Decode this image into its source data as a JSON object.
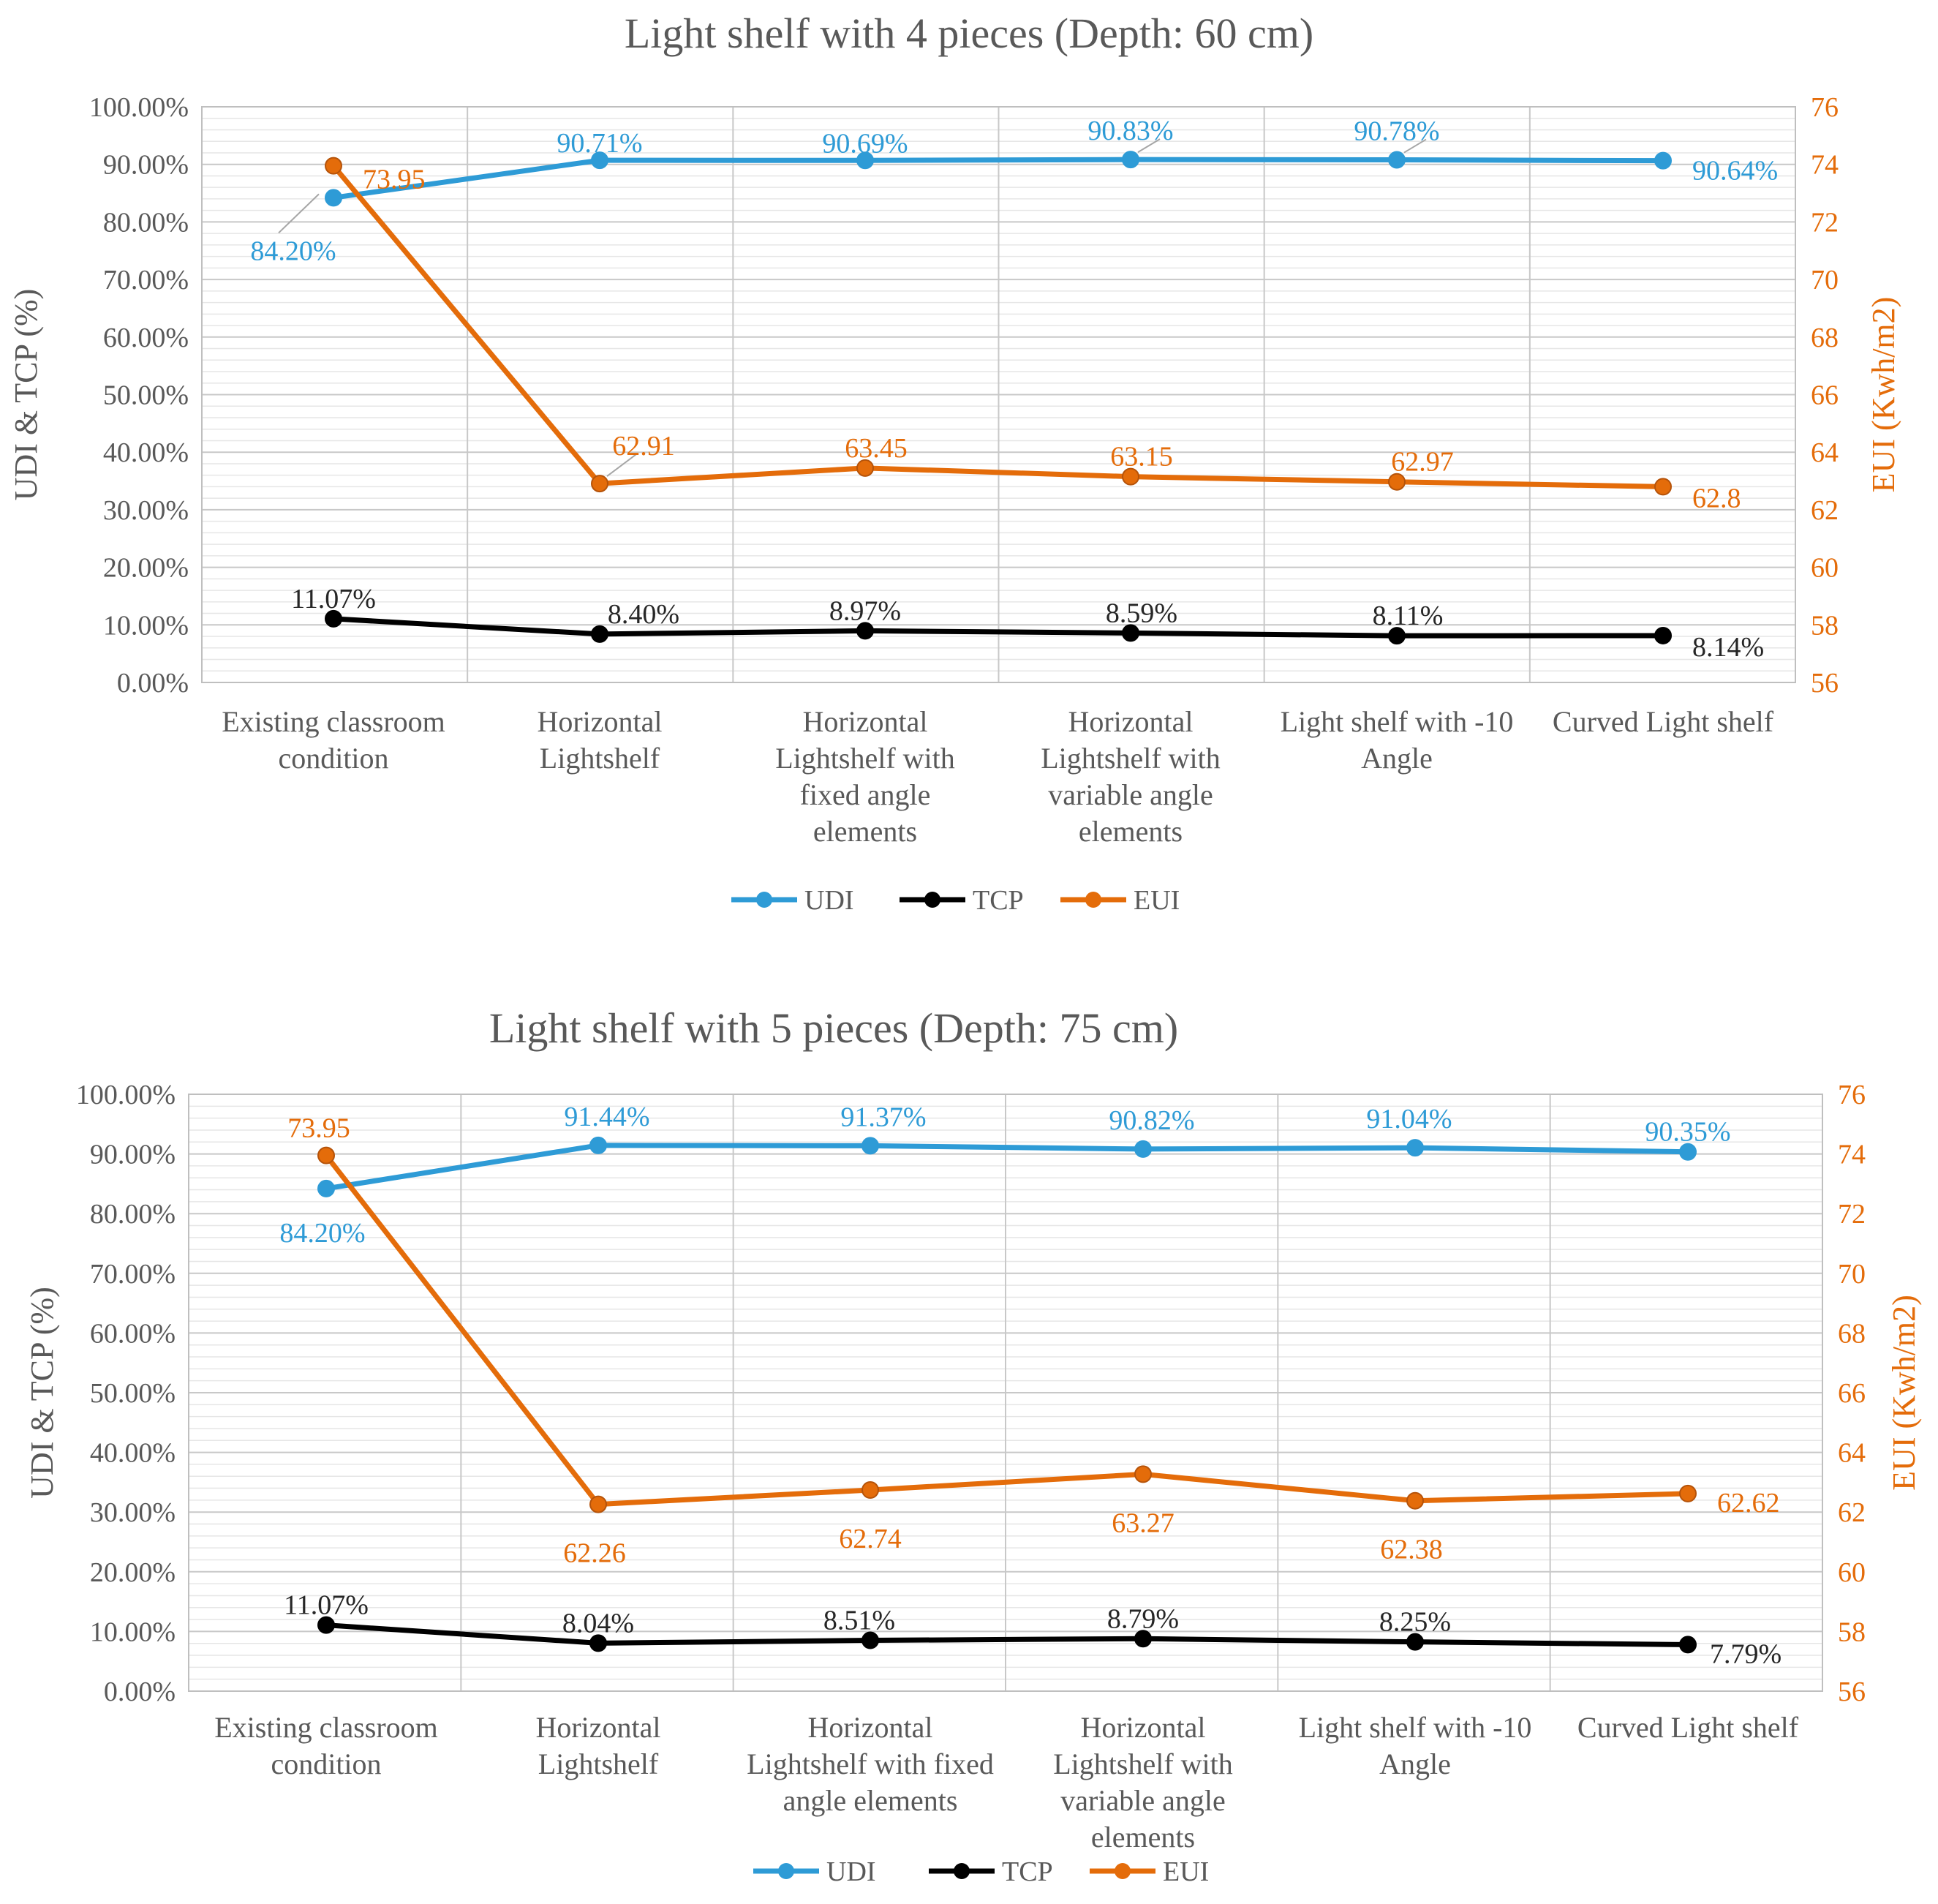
{
  "colors": {
    "udi": "#2E9BD6",
    "tcp": "#000000",
    "eui": "#E46C0A",
    "grid": "#D9D9D9",
    "text": "#595959"
  },
  "chart_data": [
    {
      "type": "line",
      "title": "Light shelf with 4 pieces (Depth: 60 cm)",
      "ylabel": "UDI & TCP (%)",
      "y2label": "EUI (Kwh/m2)",
      "ylim": [
        0,
        100
      ],
      "y2lim": [
        56,
        76
      ],
      "yticks": [
        "0.00%",
        "10.00%",
        "20.00%",
        "30.00%",
        "40.00%",
        "50.00%",
        "60.00%",
        "70.00%",
        "80.00%",
        "90.00%",
        "100.00%"
      ],
      "y2ticks": [
        "56",
        "58",
        "60",
        "62",
        "64",
        "66",
        "68",
        "70",
        "72",
        "74",
        "76"
      ],
      "categories": [
        [
          "Existing classroom",
          "condition"
        ],
        [
          "Horizontal",
          "Lightshelf"
        ],
        [
          "Horizontal",
          "Lightshelf with",
          "fixed angle",
          "elements"
        ],
        [
          "Horizontal",
          "Lightshelf with",
          "variable angle",
          "elements"
        ],
        [
          "Light shelf with -10",
          "Angle"
        ],
        [
          "Curved Light shelf"
        ]
      ],
      "series": [
        {
          "name": "UDI",
          "axis": "left",
          "values": [
            84.2,
            90.71,
            90.69,
            90.83,
            90.78,
            90.64
          ],
          "labels": [
            "84.20%",
            "90.71%",
            "90.69%",
            "90.83%",
            "90.78%",
            "90.64%"
          ]
        },
        {
          "name": "TCP",
          "axis": "left",
          "values": [
            11.07,
            8.4,
            8.97,
            8.59,
            8.11,
            8.14
          ],
          "labels": [
            "11.07%",
            "8.40%",
            "8.97%",
            "8.59%",
            "8.11%",
            "8.14%"
          ]
        },
        {
          "name": "EUI",
          "axis": "right",
          "values": [
            73.95,
            62.91,
            63.45,
            63.15,
            62.97,
            62.8
          ],
          "labels": [
            "73.95",
            "62.91",
            "63.45",
            "63.15",
            "62.97",
            "62.8"
          ]
        }
      ],
      "legend": "bottom"
    },
    {
      "type": "line",
      "title": "Light shelf with 5 pieces (Depth: 75 cm)",
      "ylabel": "UDI & TCP (%)",
      "y2label": "EUI (Kwh/m2)",
      "ylim": [
        0,
        100
      ],
      "y2lim": [
        56,
        76
      ],
      "yticks": [
        "0.00%",
        "10.00%",
        "20.00%",
        "30.00%",
        "40.00%",
        "50.00%",
        "60.00%",
        "70.00%",
        "80.00%",
        "90.00%",
        "100.00%"
      ],
      "y2ticks": [
        "56",
        "58",
        "60",
        "62",
        "64",
        "66",
        "68",
        "70",
        "72",
        "74",
        "76"
      ],
      "categories": [
        [
          "Existing classroom",
          "condition"
        ],
        [
          "Horizontal",
          "Lightshelf"
        ],
        [
          "Horizontal",
          "Lightshelf with fixed",
          "angle elements"
        ],
        [
          "Horizontal",
          "Lightshelf with",
          "variable angle",
          "elements"
        ],
        [
          "Light shelf with -10",
          "Angle"
        ],
        [
          "Curved Light shelf"
        ]
      ],
      "series": [
        {
          "name": "UDI",
          "axis": "left",
          "values": [
            84.2,
            91.44,
            91.37,
            90.82,
            91.04,
            90.35
          ],
          "labels": [
            "84.20%",
            "91.44%",
            "91.37%",
            "90.82%",
            "91.04%",
            "90.35%"
          ]
        },
        {
          "name": "TCP",
          "axis": "left",
          "values": [
            11.07,
            8.04,
            8.51,
            8.79,
            8.25,
            7.79
          ],
          "labels": [
            "11.07%",
            "8.04%",
            "8.51%",
            "8.79%",
            "8.25%",
            "7.79%"
          ]
        },
        {
          "name": "EUI",
          "axis": "right",
          "values": [
            73.95,
            62.26,
            62.74,
            63.27,
            62.38,
            62.62
          ],
          "labels": [
            "73.95",
            "62.26",
            "62.74",
            "63.27",
            "62.38",
            "62.62"
          ]
        }
      ],
      "legend": "bottom"
    }
  ]
}
